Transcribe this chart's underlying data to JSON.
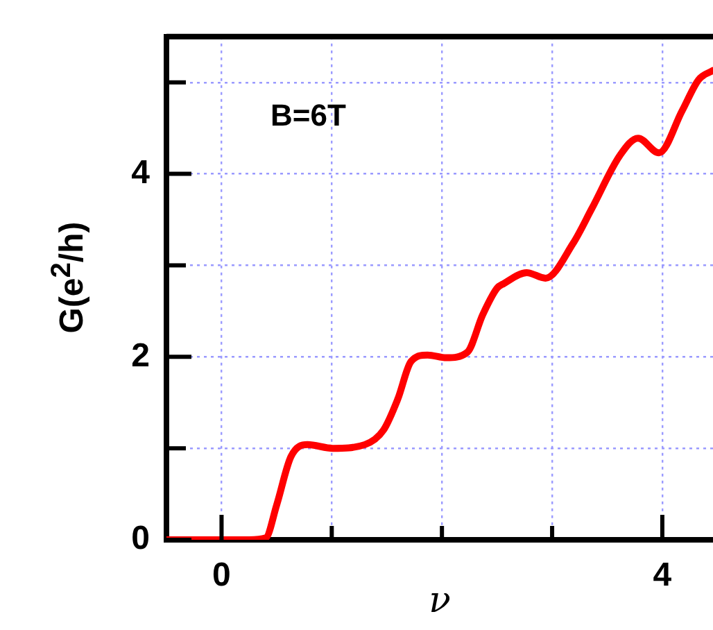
{
  "chart_data": {
    "type": "line",
    "xlabel": "ν",
    "ylabel": "G(e$^{2}$/h)",
    "annotations": [
      "B=6T"
    ],
    "x": [
      -0.5,
      0,
      0.25,
      0.4,
      0.5,
      0.63,
      0.78,
      1.01,
      1.3,
      1.47,
      1.6,
      1.72,
      1.87,
      2.04,
      2.23,
      2.37,
      2.5,
      2.56,
      2.77,
      2.94,
      3.19,
      3.36,
      3.62,
      3.78,
      3.97,
      4.18,
      4.33,
      4.46
    ],
    "series": [
      {
        "color": "#ff0000",
        "values": [
          0,
          0,
          0,
          0.02,
          0.38,
          0.91,
          1.04,
          1.0,
          1.04,
          1.2,
          1.54,
          1.95,
          2.02,
          1.99,
          2.05,
          2.46,
          2.75,
          2.8,
          2.92,
          2.86,
          3.24,
          3.62,
          4.21,
          4.39,
          4.23,
          4.69,
          5.03,
          5.13
        ]
      }
    ],
    "xlim": [
      -0.5,
      4.46
    ],
    "ylim": [
      0,
      5.5
    ],
    "xticks": [
      0,
      {
        "value": 1,
        "label": null
      },
      {
        "value": 2,
        "label": null
      },
      {
        "value": 3,
        "label": null
      },
      4
    ],
    "yticks": [
      0,
      {
        "value": 1,
        "label": null
      },
      2,
      {
        "value": 3,
        "label": null
      },
      4,
      {
        "value": 5,
        "label": null
      }
    ],
    "grid": true,
    "legend": false,
    "marker": "none",
    "line_style": "solid"
  }
}
